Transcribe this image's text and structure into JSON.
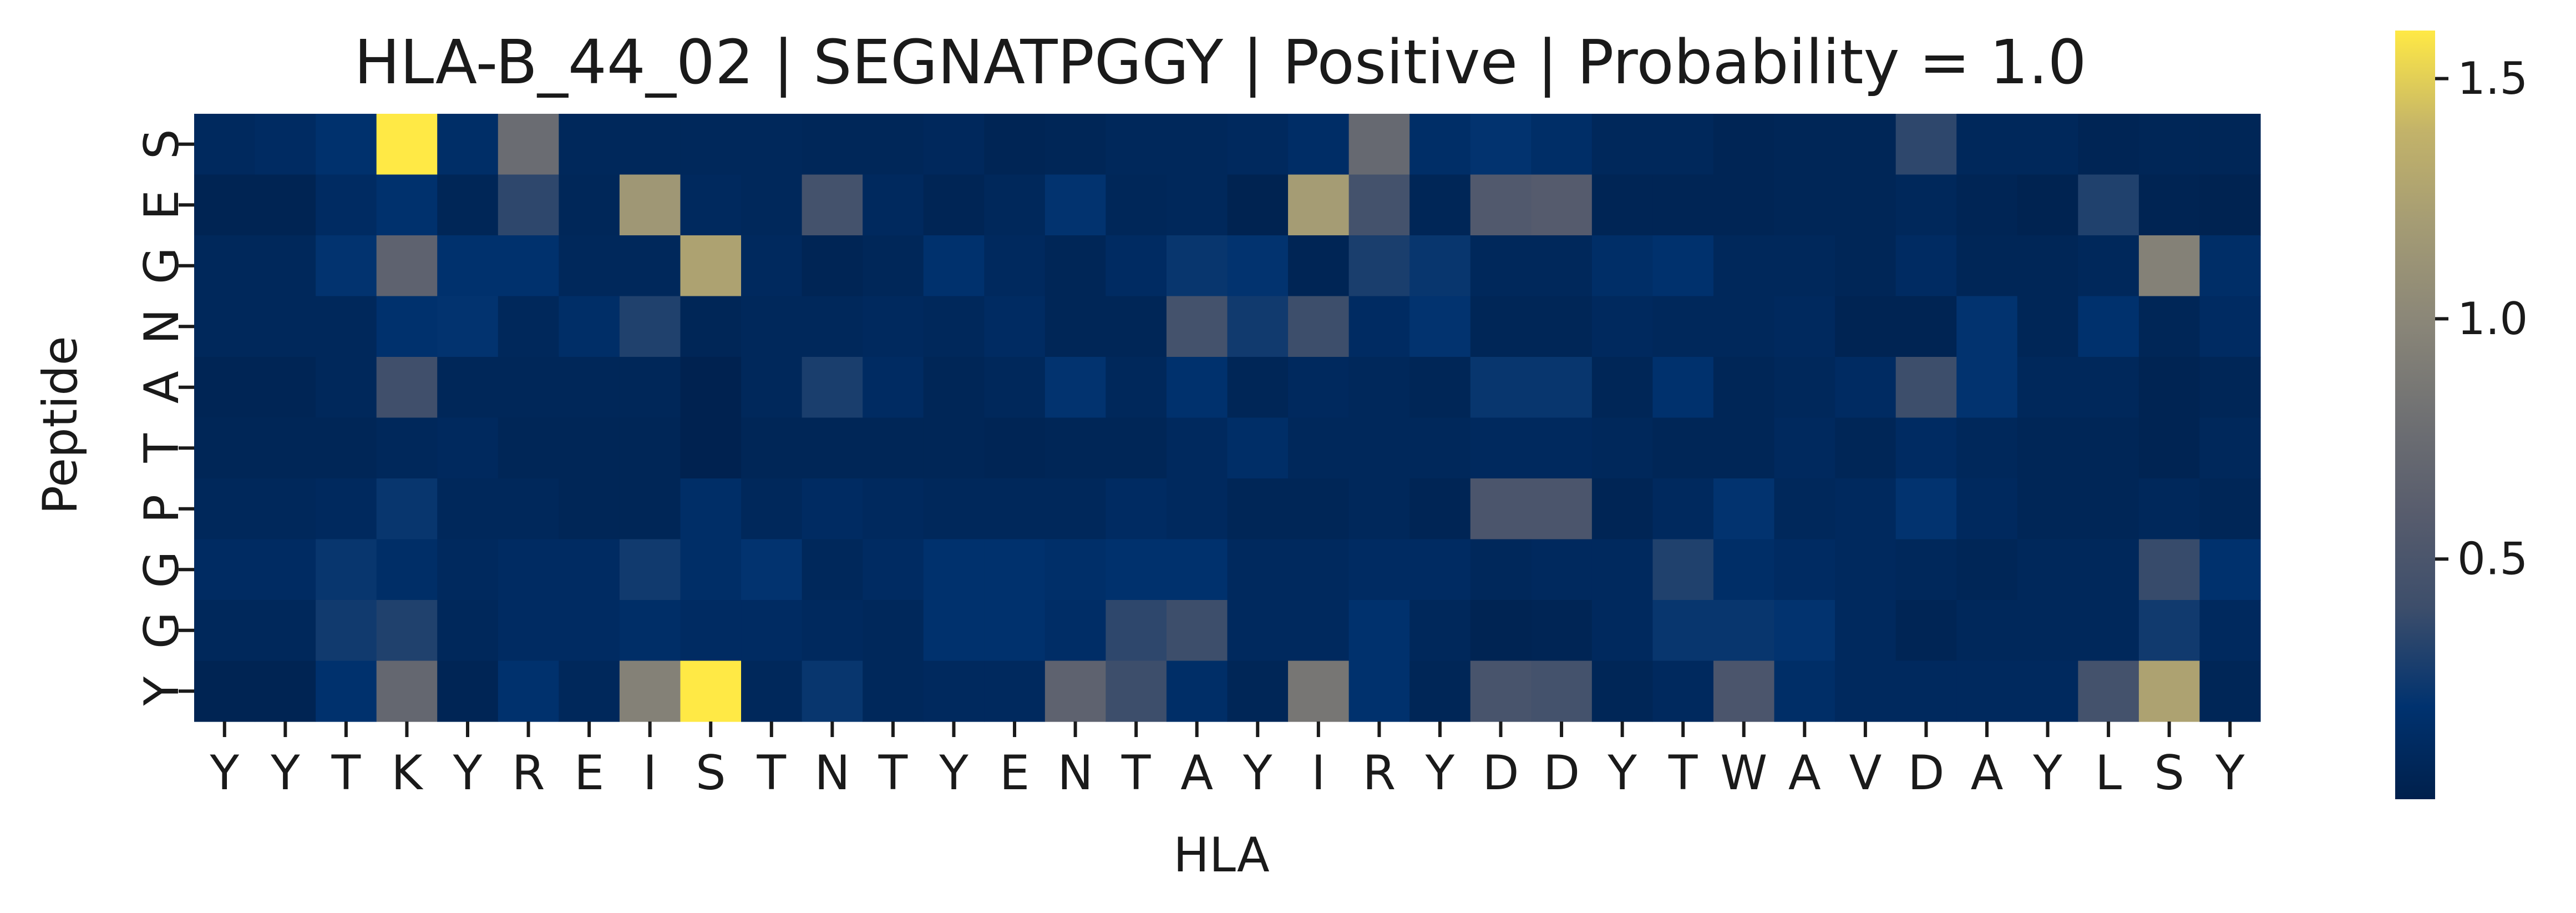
{
  "chart_data": {
    "type": "heatmap",
    "title": "HLA-B_44_02 | SEGNATPGGY | Positive | Probability = 1.0",
    "xlabel": "HLA",
    "ylabel": "Peptide",
    "x_tick_labels": [
      "Y",
      "Y",
      "T",
      "K",
      "Y",
      "R",
      "E",
      "I",
      "S",
      "T",
      "N",
      "T",
      "Y",
      "E",
      "N",
      "T",
      "A",
      "Y",
      "I",
      "R",
      "Y",
      "D",
      "D",
      "Y",
      "T",
      "W",
      "A",
      "V",
      "D",
      "A",
      "Y",
      "L",
      "S",
      "Y"
    ],
    "y_tick_labels": [
      "S",
      "E",
      "G",
      "N",
      "A",
      "T",
      "P",
      "G",
      "G",
      "Y"
    ],
    "colormap": "cividis",
    "color_range": [
      0.0,
      1.6
    ],
    "colorbar_ticks": [
      0.5,
      1.0,
      1.5
    ],
    "colorbar_tick_labels": [
      "0.5",
      "1.0",
      "1.5"
    ],
    "values": [
      [
        0.1,
        0.12,
        0.18,
        1.6,
        0.15,
        0.75,
        0.08,
        0.08,
        0.08,
        0.08,
        0.07,
        0.07,
        0.09,
        0.05,
        0.06,
        0.08,
        0.08,
        0.1,
        0.14,
        0.72,
        0.15,
        0.2,
        0.15,
        0.08,
        0.08,
        0.05,
        0.06,
        0.06,
        0.35,
        0.08,
        0.08,
        0.05,
        0.06,
        0.06
      ],
      [
        0.04,
        0.04,
        0.12,
        0.18,
        0.06,
        0.35,
        0.07,
        1.15,
        0.1,
        0.08,
        0.45,
        0.1,
        0.05,
        0.08,
        0.2,
        0.07,
        0.08,
        0.03,
        1.2,
        0.45,
        0.06,
        0.55,
        0.58,
        0.05,
        0.05,
        0.05,
        0.06,
        0.06,
        0.08,
        0.05,
        0.03,
        0.3,
        0.04,
        0.03
      ],
      [
        0.08,
        0.08,
        0.2,
        0.65,
        0.18,
        0.18,
        0.08,
        0.08,
        1.25,
        0.1,
        0.05,
        0.07,
        0.18,
        0.1,
        0.06,
        0.12,
        0.22,
        0.2,
        0.05,
        0.28,
        0.22,
        0.08,
        0.08,
        0.15,
        0.18,
        0.08,
        0.08,
        0.06,
        0.12,
        0.06,
        0.06,
        0.08,
        0.95,
        0.15
      ],
      [
        0.08,
        0.08,
        0.08,
        0.18,
        0.2,
        0.08,
        0.15,
        0.3,
        0.06,
        0.08,
        0.08,
        0.1,
        0.08,
        0.12,
        0.06,
        0.06,
        0.45,
        0.25,
        0.4,
        0.12,
        0.2,
        0.06,
        0.06,
        0.1,
        0.08,
        0.08,
        0.1,
        0.04,
        0.04,
        0.2,
        0.06,
        0.18,
        0.06,
        0.12
      ],
      [
        0.05,
        0.05,
        0.08,
        0.42,
        0.07,
        0.07,
        0.07,
        0.07,
        0.02,
        0.08,
        0.28,
        0.12,
        0.06,
        0.08,
        0.2,
        0.08,
        0.18,
        0.06,
        0.1,
        0.08,
        0.06,
        0.22,
        0.22,
        0.06,
        0.18,
        0.06,
        0.08,
        0.12,
        0.4,
        0.2,
        0.08,
        0.08,
        0.04,
        0.06
      ],
      [
        0.06,
        0.06,
        0.06,
        0.08,
        0.1,
        0.06,
        0.06,
        0.06,
        0.02,
        0.06,
        0.06,
        0.06,
        0.06,
        0.05,
        0.06,
        0.06,
        0.1,
        0.15,
        0.08,
        0.08,
        0.08,
        0.1,
        0.1,
        0.08,
        0.06,
        0.06,
        0.1,
        0.06,
        0.12,
        0.08,
        0.06,
        0.06,
        0.04,
        0.08
      ],
      [
        0.08,
        0.08,
        0.1,
        0.22,
        0.08,
        0.08,
        0.06,
        0.06,
        0.15,
        0.08,
        0.12,
        0.1,
        0.08,
        0.08,
        0.08,
        0.12,
        0.1,
        0.06,
        0.06,
        0.08,
        0.05,
        0.5,
        0.5,
        0.05,
        0.1,
        0.2,
        0.08,
        0.1,
        0.2,
        0.1,
        0.06,
        0.06,
        0.08,
        0.06
      ],
      [
        0.12,
        0.12,
        0.22,
        0.15,
        0.1,
        0.12,
        0.12,
        0.25,
        0.15,
        0.2,
        0.08,
        0.12,
        0.18,
        0.18,
        0.16,
        0.18,
        0.18,
        0.1,
        0.1,
        0.12,
        0.12,
        0.08,
        0.1,
        0.1,
        0.3,
        0.15,
        0.12,
        0.1,
        0.08,
        0.06,
        0.08,
        0.08,
        0.38,
        0.18
      ],
      [
        0.08,
        0.08,
        0.25,
        0.3,
        0.08,
        0.12,
        0.12,
        0.15,
        0.12,
        0.12,
        0.1,
        0.08,
        0.18,
        0.18,
        0.14,
        0.35,
        0.4,
        0.1,
        0.1,
        0.18,
        0.08,
        0.04,
        0.05,
        0.1,
        0.22,
        0.22,
        0.2,
        0.1,
        0.05,
        0.08,
        0.08,
        0.08,
        0.25,
        0.1
      ],
      [
        0.04,
        0.04,
        0.18,
        0.7,
        0.05,
        0.18,
        0.08,
        0.95,
        1.6,
        0.08,
        0.22,
        0.08,
        0.1,
        0.1,
        0.65,
        0.4,
        0.15,
        0.06,
        0.85,
        0.18,
        0.06,
        0.48,
        0.45,
        0.06,
        0.1,
        0.5,
        0.15,
        0.1,
        0.1,
        0.1,
        0.1,
        0.45,
        1.25,
        0.06
      ]
    ]
  }
}
